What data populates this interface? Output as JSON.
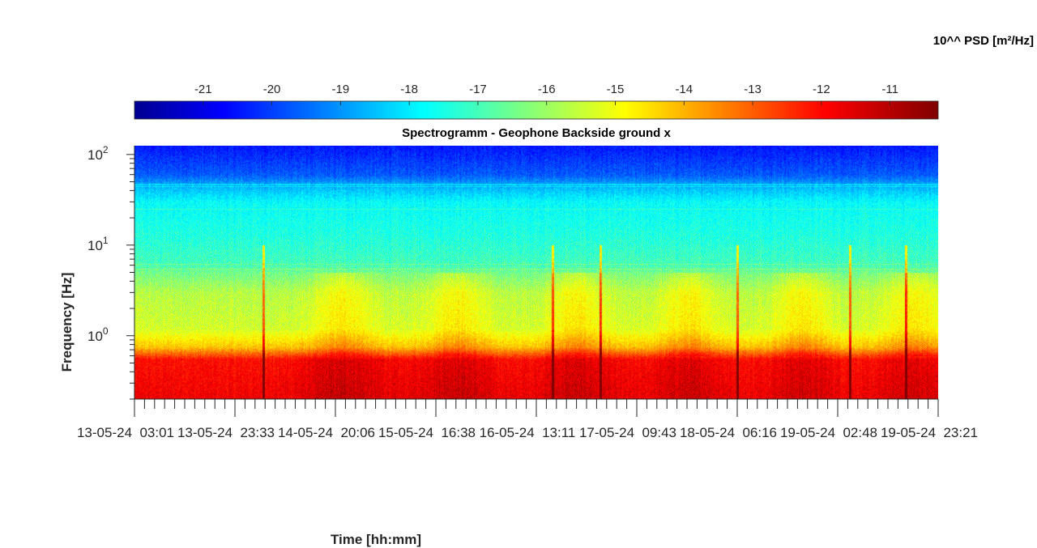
{
  "chart_data": {
    "type": "heatmap",
    "title": "Spectrogramm - Geophone Backside ground x",
    "xlabel": "Time [hh:mm]",
    "ylabel": "Frequency [Hz]",
    "y_scale": "log",
    "ylim": [
      0.2,
      125
    ],
    "y_ticks": [
      {
        "value": 1,
        "base": "10",
        "exp": "0"
      },
      {
        "value": 10,
        "base": "10",
        "exp": "1"
      },
      {
        "value": 100,
        "base": "10",
        "exp": "2"
      }
    ],
    "x_tick_labels": [
      "13-05-24  03:01",
      "13-05-24  23:33",
      "14-05-24  20:06",
      "15-05-24  16:38",
      "16-05-24  13:11",
      "17-05-24  09:43",
      "18-05-24  06:16",
      "19-05-24  02:48",
      "19-05-24  23:21"
    ],
    "colorbar": {
      "label": "10^^ PSD [m²/Hz]",
      "range": [
        -22,
        -10.3
      ],
      "ticks": [
        -21,
        -20,
        -19,
        -18,
        -17,
        -16,
        -15,
        -14,
        -13,
        -12,
        -11
      ],
      "tick_labels": [
        "-21",
        "-20",
        "-19",
        "-18",
        "-17",
        "-16",
        "-15",
        "-14",
        "-13",
        "-12",
        "-11"
      ],
      "colormap": "jet"
    },
    "description_of_values": {
      "low_freq_band_0.2_to_0.6Hz": -11.8,
      "band_0.6_to_1.2Hz": -14.5,
      "band_1.2_to_5Hz": -15.5,
      "band_5_to_40Hz": -17.0,
      "band_40_to_125Hz": -19.8
    }
  }
}
